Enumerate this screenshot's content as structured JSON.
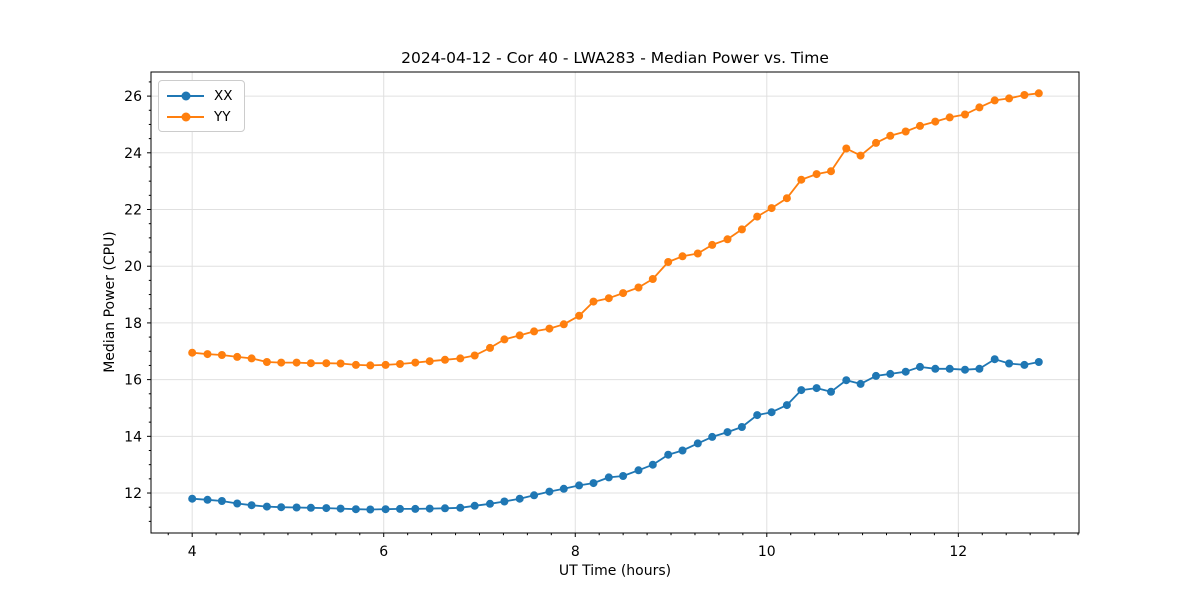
{
  "chart_data": {
    "type": "line",
    "title": "2024-04-12 - Cor 40 - LWA283 - Median Power vs. Time",
    "xlabel": "UT Time (hours)",
    "ylabel": "Median Power (CPU)",
    "xlim": [
      3.57,
      13.26
    ],
    "ylim": [
      10.59,
      26.85
    ],
    "x_major_ticks": [
      4,
      6,
      8,
      10,
      12
    ],
    "y_major_ticks": [
      12,
      14,
      16,
      18,
      20,
      22,
      24,
      26
    ],
    "x_minor_step": 0.25,
    "y_minor_step": 0.5,
    "grid": "major-both",
    "grid_color": "#e0e0e0",
    "spine_color": "#000000",
    "background": "#ffffff",
    "legend_position": "upper-left",
    "x": [
      4.0,
      4.16,
      4.31,
      4.47,
      4.62,
      4.78,
      4.93,
      5.09,
      5.24,
      5.4,
      5.55,
      5.71,
      5.86,
      6.02,
      6.17,
      6.33,
      6.48,
      6.64,
      6.8,
      6.95,
      7.11,
      7.26,
      7.42,
      7.57,
      7.73,
      7.88,
      8.04,
      8.19,
      8.35,
      8.5,
      8.66,
      8.81,
      8.97,
      9.12,
      9.28,
      9.43,
      9.59,
      9.74,
      9.9,
      10.05,
      10.21,
      10.36,
      10.52,
      10.67,
      10.83,
      10.98,
      11.14,
      11.29,
      11.45,
      11.6,
      11.76,
      11.91,
      12.07,
      12.22,
      12.38,
      12.53,
      12.69,
      12.84
    ],
    "series": [
      {
        "name": "XX",
        "color": "#1f77b4",
        "marker": "circle",
        "values": [
          11.8,
          11.76,
          11.72,
          11.63,
          11.57,
          11.52,
          11.5,
          11.49,
          11.48,
          11.47,
          11.45,
          11.43,
          11.42,
          11.43,
          11.44,
          11.44,
          11.45,
          11.46,
          11.48,
          11.55,
          11.62,
          11.7,
          11.8,
          11.92,
          12.05,
          12.15,
          12.27,
          12.35,
          12.55,
          12.6,
          12.8,
          13.0,
          13.35,
          13.5,
          13.75,
          13.98,
          14.15,
          14.33,
          14.75,
          14.85,
          15.1,
          15.63,
          15.7,
          15.57,
          15.98,
          15.85,
          16.13,
          16.2,
          16.28,
          16.45,
          16.38,
          16.38,
          16.35,
          16.38,
          16.72,
          16.57,
          16.52,
          16.62
        ]
      },
      {
        "name": "YY",
        "color": "#ff7f0e",
        "marker": "circle",
        "values": [
          16.95,
          16.9,
          16.87,
          16.8,
          16.75,
          16.62,
          16.6,
          16.6,
          16.58,
          16.58,
          16.57,
          16.52,
          16.5,
          16.52,
          16.55,
          16.6,
          16.65,
          16.7,
          16.75,
          16.85,
          17.12,
          17.42,
          17.56,
          17.7,
          17.8,
          17.95,
          18.25,
          18.75,
          18.87,
          19.05,
          19.25,
          19.55,
          20.15,
          20.35,
          20.45,
          20.75,
          20.95,
          21.3,
          21.75,
          22.05,
          22.4,
          23.05,
          23.25,
          23.35,
          24.15,
          23.9,
          24.35,
          24.6,
          24.75,
          24.95,
          25.1,
          25.25,
          25.35,
          25.6,
          25.85,
          25.92,
          26.04,
          26.1
        ]
      }
    ]
  }
}
